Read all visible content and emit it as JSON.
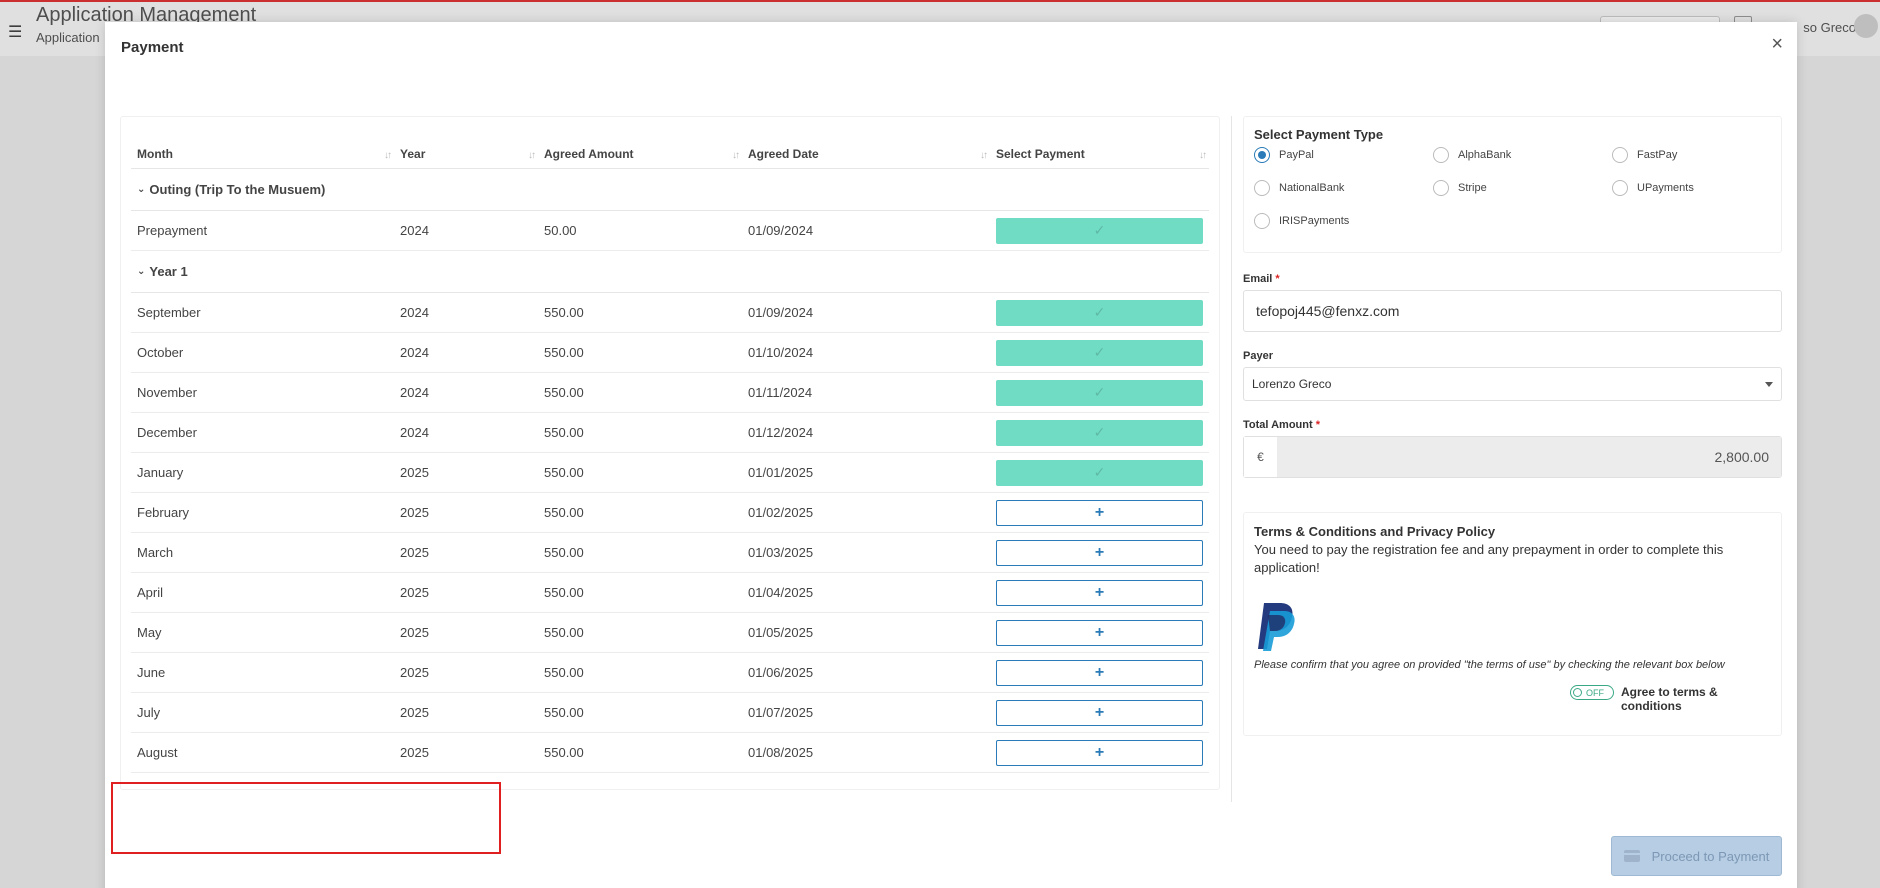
{
  "background": {
    "app_title": "Application Management",
    "app_subtitle": "Application",
    "user_name": "so Greco"
  },
  "modal": {
    "title": "Payment",
    "close_icon": "×"
  },
  "table": {
    "headers": [
      "Month",
      "Year",
      "Agreed Amount",
      "Agreed Date",
      "Select Payment"
    ],
    "groups": [
      {
        "name": "Outing (Trip To the Musuem)",
        "rows": [
          {
            "month": "Prepayment",
            "year": "2024",
            "amount": "50.00",
            "date": "01/09/2024",
            "status": "paid"
          }
        ]
      },
      {
        "name": "Year 1",
        "rows": [
          {
            "month": "September",
            "year": "2024",
            "amount": "550.00",
            "date": "01/09/2024",
            "status": "paid"
          },
          {
            "month": "October",
            "year": "2024",
            "amount": "550.00",
            "date": "01/10/2024",
            "status": "paid"
          },
          {
            "month": "November",
            "year": "2024",
            "amount": "550.00",
            "date": "01/11/2024",
            "status": "paid"
          },
          {
            "month": "December",
            "year": "2024",
            "amount": "550.00",
            "date": "01/12/2024",
            "status": "paid"
          },
          {
            "month": "January",
            "year": "2025",
            "amount": "550.00",
            "date": "01/01/2025",
            "status": "paid"
          },
          {
            "month": "February",
            "year": "2025",
            "amount": "550.00",
            "date": "01/02/2025",
            "status": "add"
          },
          {
            "month": "March",
            "year": "2025",
            "amount": "550.00",
            "date": "01/03/2025",
            "status": "add"
          },
          {
            "month": "April",
            "year": "2025",
            "amount": "550.00",
            "date": "01/04/2025",
            "status": "add"
          },
          {
            "month": "May",
            "year": "2025",
            "amount": "550.00",
            "date": "01/05/2025",
            "status": "add"
          },
          {
            "month": "June",
            "year": "2025",
            "amount": "550.00",
            "date": "01/06/2025",
            "status": "add"
          },
          {
            "month": "July",
            "year": "2025",
            "amount": "550.00",
            "date": "01/07/2025",
            "status": "add"
          },
          {
            "month": "August",
            "year": "2025",
            "amount": "550.00",
            "date": "01/08/2025",
            "status": "add"
          }
        ]
      }
    ],
    "paid_glyph": "✓",
    "add_glyph": "+"
  },
  "payment_type": {
    "title": "Select Payment Type",
    "selected": "PayPal",
    "options": [
      "PayPal",
      "AlphaBank",
      "FastPay",
      "NationalBank",
      "Stripe",
      "UPayments",
      "IRISPayments"
    ]
  },
  "email": {
    "label": "Email",
    "required": "*",
    "value": "tefopoj445@fenxz.com"
  },
  "payer": {
    "label": "Payer",
    "value": "Lorenzo Greco"
  },
  "total": {
    "label": "Total Amount",
    "required": "*",
    "currency": "€",
    "value": "2,800.00"
  },
  "terms": {
    "title": "Terms & Conditions and Privacy Policy",
    "text": "You need to pay the registration fee and any prepayment in order to complete this application!",
    "note": "Please confirm that you agree on provided \"the terms of use\" by checking the relevant box below",
    "toggle_state": "OFF",
    "toggle_label": "Agree to terms & conditions"
  },
  "proceed": {
    "label": "Proceed to Payment"
  },
  "colors": {
    "paid": "#6fdcc3",
    "accent": "#2a7bb8",
    "highlight": "#e02020"
  }
}
